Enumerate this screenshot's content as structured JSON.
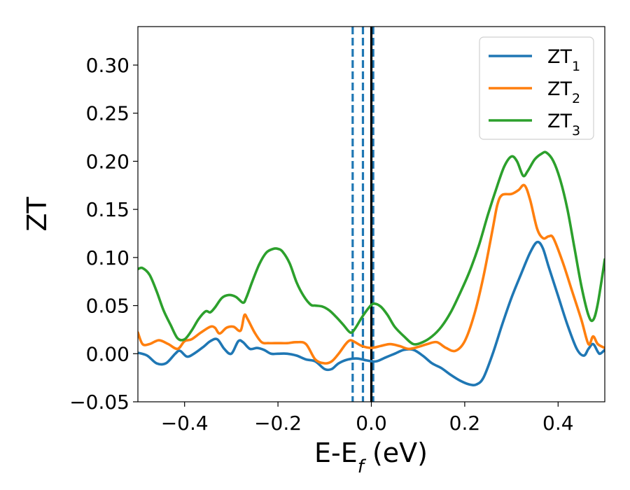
{
  "chart_data": {
    "type": "line",
    "xlabel": "E-E",
    "xlabel_sub": "f",
    "xlabel_unit": " (eV)",
    "ylabel": "ZT",
    "xlim": [
      -0.5,
      0.5
    ],
    "ylim": [
      -0.05,
      0.34
    ],
    "x_ticks": [
      -0.4,
      -0.2,
      0.0,
      0.2,
      0.4
    ],
    "x_tick_labels": [
      "−0.4",
      "−0.2",
      "0.0",
      "0.2",
      "0.4"
    ],
    "y_ticks": [
      -0.05,
      0.0,
      0.05,
      0.1,
      0.15,
      0.2,
      0.25,
      0.3
    ],
    "y_tick_labels": [
      "−0.05",
      "0.00",
      "0.05",
      "0.10",
      "0.15",
      "0.20",
      "0.25",
      "0.30"
    ],
    "grid": false,
    "legend_position": "top-right",
    "vertical_lines": [
      {
        "x": -0.04,
        "style": "dashed",
        "color": "#1f77b4"
      },
      {
        "x": -0.018,
        "style": "dashed",
        "color": "#1f77b4"
      },
      {
        "x": 0.004,
        "style": "dashed",
        "color": "#1f77b4"
      },
      {
        "x": 0.0,
        "style": "solid",
        "color": "#000000"
      }
    ],
    "series": [
      {
        "name": "ZT",
        "name_sub": "1",
        "color": "#1f77b4",
        "x": [
          -0.5,
          -0.48,
          -0.46,
          -0.44,
          -0.42,
          -0.41,
          -0.395,
          -0.38,
          -0.36,
          -0.345,
          -0.33,
          -0.315,
          -0.3,
          -0.285,
          -0.275,
          -0.26,
          -0.245,
          -0.23,
          -0.215,
          -0.2,
          -0.18,
          -0.16,
          -0.14,
          -0.12,
          -0.1,
          -0.085,
          -0.07,
          -0.05,
          -0.03,
          -0.01,
          0.01,
          0.03,
          0.05,
          0.07,
          0.09,
          0.11,
          0.13,
          0.15,
          0.17,
          0.19,
          0.21,
          0.225,
          0.24,
          0.26,
          0.28,
          0.3,
          0.32,
          0.34,
          0.355,
          0.367,
          0.38,
          0.4,
          0.42,
          0.44,
          0.455,
          0.465,
          0.475,
          0.485,
          0.49,
          0.5
        ],
        "y": [
          0.001,
          -0.002,
          -0.01,
          -0.01,
          0.0,
          0.003,
          -0.003,
          0.0,
          0.007,
          0.013,
          0.015,
          0.005,
          0.0,
          0.013,
          0.012,
          0.005,
          0.006,
          0.004,
          0.0,
          0.0,
          0.0,
          -0.002,
          -0.006,
          -0.008,
          -0.016,
          -0.016,
          -0.01,
          -0.006,
          -0.005,
          -0.007,
          -0.008,
          -0.004,
          0.0,
          0.004,
          0.004,
          -0.002,
          -0.01,
          -0.015,
          -0.022,
          -0.028,
          -0.032,
          -0.032,
          -0.025,
          0.0,
          0.03,
          0.058,
          0.082,
          0.105,
          0.116,
          0.11,
          0.09,
          0.06,
          0.03,
          0.005,
          -0.002,
          0.005,
          0.01,
          0.002,
          0.0,
          0.004
        ]
      },
      {
        "name": "ZT",
        "name_sub": "2",
        "color": "#ff7f0e",
        "x": [
          -0.5,
          -0.49,
          -0.475,
          -0.455,
          -0.435,
          -0.415,
          -0.4,
          -0.385,
          -0.365,
          -0.345,
          -0.335,
          -0.325,
          -0.31,
          -0.295,
          -0.28,
          -0.272,
          -0.265,
          -0.25,
          -0.235,
          -0.22,
          -0.2,
          -0.18,
          -0.16,
          -0.14,
          -0.12,
          -0.1,
          -0.085,
          -0.07,
          -0.055,
          -0.045,
          -0.035,
          -0.02,
          0.0,
          0.02,
          0.04,
          0.06,
          0.08,
          0.1,
          0.12,
          0.14,
          0.16,
          0.18,
          0.2,
          0.22,
          0.24,
          0.26,
          0.27,
          0.28,
          0.3,
          0.315,
          0.328,
          0.34,
          0.355,
          0.368,
          0.38,
          0.39,
          0.41,
          0.43,
          0.45,
          0.465,
          0.475,
          0.485,
          0.5
        ],
        "y": [
          0.022,
          0.01,
          0.01,
          0.014,
          0.01,
          0.005,
          0.013,
          0.015,
          0.022,
          0.028,
          0.027,
          0.021,
          0.027,
          0.028,
          0.024,
          0.04,
          0.036,
          0.022,
          0.012,
          0.011,
          0.011,
          0.011,
          0.012,
          0.01,
          -0.006,
          -0.01,
          -0.008,
          0.0,
          0.01,
          0.014,
          0.012,
          0.008,
          0.006,
          0.008,
          0.01,
          0.008,
          0.005,
          0.007,
          0.01,
          0.012,
          0.006,
          0.003,
          0.013,
          0.04,
          0.08,
          0.13,
          0.155,
          0.165,
          0.166,
          0.17,
          0.175,
          0.16,
          0.13,
          0.12,
          0.122,
          0.12,
          0.095,
          0.065,
          0.035,
          0.01,
          0.018,
          0.01,
          0.006
        ]
      },
      {
        "name": "ZT",
        "name_sub": "3",
        "color": "#2ca02c",
        "x": [
          -0.5,
          -0.49,
          -0.475,
          -0.46,
          -0.445,
          -0.43,
          -0.415,
          -0.4,
          -0.385,
          -0.37,
          -0.355,
          -0.345,
          -0.335,
          -0.32,
          -0.305,
          -0.29,
          -0.275,
          -0.268,
          -0.255,
          -0.24,
          -0.225,
          -0.21,
          -0.2,
          -0.19,
          -0.175,
          -0.16,
          -0.145,
          -0.13,
          -0.12,
          -0.105,
          -0.09,
          -0.075,
          -0.06,
          -0.045,
          -0.035,
          -0.02,
          -0.005,
          0.005,
          0.02,
          0.035,
          0.05,
          0.07,
          0.09,
          0.11,
          0.13,
          0.15,
          0.17,
          0.19,
          0.21,
          0.23,
          0.25,
          0.27,
          0.285,
          0.3,
          0.312,
          0.325,
          0.335,
          0.35,
          0.365,
          0.375,
          0.39,
          0.405,
          0.42,
          0.435,
          0.45,
          0.465,
          0.475,
          0.485,
          0.5
        ],
        "y": [
          0.088,
          0.089,
          0.082,
          0.065,
          0.045,
          0.03,
          0.016,
          0.015,
          0.024,
          0.036,
          0.044,
          0.043,
          0.048,
          0.058,
          0.061,
          0.059,
          0.053,
          0.058,
          0.075,
          0.093,
          0.105,
          0.109,
          0.109,
          0.106,
          0.094,
          0.074,
          0.06,
          0.051,
          0.05,
          0.049,
          0.045,
          0.038,
          0.03,
          0.022,
          0.026,
          0.038,
          0.048,
          0.052,
          0.049,
          0.04,
          0.028,
          0.018,
          0.01,
          0.012,
          0.018,
          0.028,
          0.043,
          0.063,
          0.085,
          0.112,
          0.145,
          0.175,
          0.195,
          0.205,
          0.2,
          0.185,
          0.19,
          0.202,
          0.208,
          0.209,
          0.2,
          0.18,
          0.15,
          0.11,
          0.07,
          0.04,
          0.035,
          0.052,
          0.098
        ]
      }
    ]
  }
}
